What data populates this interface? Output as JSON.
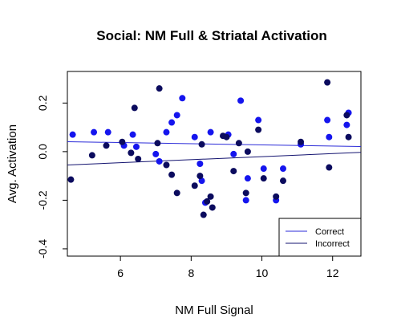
{
  "chart_data": {
    "type": "scatter",
    "title": "Social: NM Full & Striatal Activation",
    "xlabel": "NM Full Signal",
    "ylabel": "Avg. Activation",
    "xlim": [
      4.5,
      12.8
    ],
    "ylim": [
      -0.43,
      0.33
    ],
    "x_ticks": [
      6,
      8,
      10,
      12
    ],
    "y_ticks": [
      -0.4,
      -0.2,
      0.0,
      0.2
    ],
    "x_tick_labels": [
      "6",
      "8",
      "10",
      "12"
    ],
    "y_tick_labels": [
      "-0.4",
      "-0.2",
      "0.0",
      "0.2"
    ],
    "legend_position": "bottom-right",
    "colors": {
      "correct": "#1515ee",
      "incorrect": "#0b0b5e",
      "correct_line": "#2b2bd8",
      "incorrect_line": "#141470"
    },
    "series": [
      {
        "name": "Correct",
        "fit_line": [
          [
            4.5,
            0.041
          ],
          [
            12.8,
            0.021
          ]
        ],
        "points": [
          [
            4.65,
            0.07
          ],
          [
            5.25,
            0.08
          ],
          [
            5.65,
            0.08
          ],
          [
            6.1,
            0.025
          ],
          [
            6.35,
            0.07
          ],
          [
            6.45,
            0.02
          ],
          [
            7.0,
            -0.01
          ],
          [
            7.1,
            -0.04
          ],
          [
            7.3,
            0.08
          ],
          [
            7.45,
            0.12
          ],
          [
            7.6,
            0.15
          ],
          [
            7.75,
            0.22
          ],
          [
            8.1,
            0.06
          ],
          [
            8.25,
            -0.05
          ],
          [
            8.3,
            -0.12
          ],
          [
            8.4,
            -0.21
          ],
          [
            8.55,
            0.08
          ],
          [
            9.05,
            0.07
          ],
          [
            9.2,
            -0.01
          ],
          [
            9.4,
            0.21
          ],
          [
            9.55,
            -0.2
          ],
          [
            9.6,
            -0.11
          ],
          [
            9.9,
            0.13
          ],
          [
            10.05,
            -0.07
          ],
          [
            10.4,
            -0.2
          ],
          [
            10.6,
            -0.07
          ],
          [
            11.1,
            0.03
          ],
          [
            11.85,
            0.13
          ],
          [
            11.9,
            0.06
          ],
          [
            12.4,
            0.11
          ],
          [
            12.45,
            0.16
          ]
        ]
      },
      {
        "name": "Incorrect",
        "fit_line": [
          [
            4.5,
            -0.055
          ],
          [
            12.8,
            -0.003
          ]
        ],
        "points": [
          [
            4.6,
            -0.115
          ],
          [
            5.2,
            -0.015
          ],
          [
            5.6,
            0.025
          ],
          [
            6.05,
            0.04
          ],
          [
            6.3,
            -0.005
          ],
          [
            6.4,
            0.18
          ],
          [
            6.5,
            -0.03
          ],
          [
            7.05,
            0.035
          ],
          [
            7.1,
            0.26
          ],
          [
            7.3,
            -0.055
          ],
          [
            7.45,
            -0.095
          ],
          [
            7.6,
            -0.17
          ],
          [
            8.1,
            -0.14
          ],
          [
            8.25,
            -0.1
          ],
          [
            8.3,
            0.03
          ],
          [
            8.35,
            -0.26
          ],
          [
            8.45,
            -0.205
          ],
          [
            8.55,
            -0.185
          ],
          [
            8.6,
            -0.23
          ],
          [
            8.9,
            0.065
          ],
          [
            9.0,
            0.06
          ],
          [
            9.2,
            -0.08
          ],
          [
            9.35,
            0.035
          ],
          [
            9.55,
            -0.17
          ],
          [
            9.6,
            0.0
          ],
          [
            9.9,
            0.09
          ],
          [
            10.05,
            -0.11
          ],
          [
            10.4,
            -0.185
          ],
          [
            10.6,
            -0.12
          ],
          [
            11.1,
            0.04
          ],
          [
            11.85,
            0.285
          ],
          [
            11.9,
            -0.065
          ],
          [
            12.4,
            0.15
          ],
          [
            12.45,
            0.06
          ]
        ]
      }
    ]
  }
}
